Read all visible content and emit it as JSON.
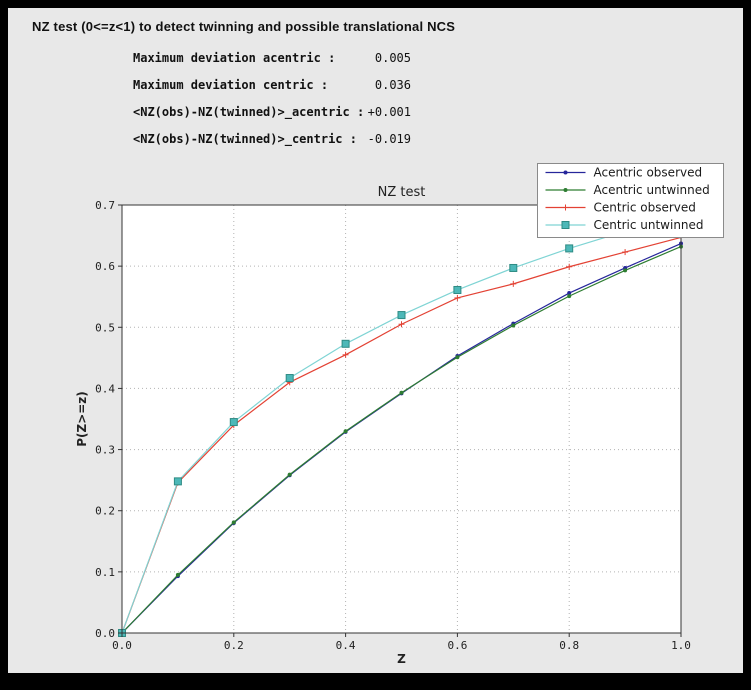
{
  "window": {
    "frame_color": "#000000",
    "panel_color": "#e8e8e8"
  },
  "header": {
    "title": "NZ test (0<=z<1) to detect twinning and possible translational NCS"
  },
  "stats": {
    "rows": [
      {
        "label": "Maximum deviation acentric :",
        "value": "0.005"
      },
      {
        "label": "Maximum deviation centric :",
        "value": "0.036"
      },
      {
        "label": "<NZ(obs)-NZ(twinned)>_acentric :",
        "value": "+0.001"
      },
      {
        "label": "<NZ(obs)-NZ(twinned)>_centric :",
        "value": "-0.019"
      }
    ]
  },
  "chart_data": {
    "type": "line",
    "title": "NZ test",
    "xlabel": "Z",
    "ylabel": "P(Z>=z)",
    "xlim": [
      0.0,
      1.0
    ],
    "ylim": [
      0.0,
      0.7
    ],
    "xticks": [
      0.0,
      0.2,
      0.4,
      0.6,
      0.8,
      1.0
    ],
    "yticks": [
      0.0,
      0.1,
      0.2,
      0.3,
      0.4,
      0.5,
      0.6,
      0.7
    ],
    "grid": true,
    "legend_position": "top-right",
    "colors": {
      "plot_bg": "#ffffff",
      "grid": "#b3b3b3",
      "axes": "#333333",
      "legend_bg": "#ffffff",
      "legend_border": "#8a8a8a"
    },
    "x": [
      0.0,
      0.1,
      0.2,
      0.3,
      0.4,
      0.5,
      0.6,
      0.7,
      0.8,
      0.9,
      1.0
    ],
    "series": [
      {
        "name": "Acentric observed",
        "color": "#26269b",
        "marker": "dot",
        "values": [
          0.0,
          0.093,
          0.18,
          0.258,
          0.329,
          0.392,
          0.453,
          0.506,
          0.556,
          0.597,
          0.637
        ]
      },
      {
        "name": "Acentric untwinned",
        "color": "#2e7d32",
        "marker": "dot",
        "values": [
          0.0,
          0.095,
          0.181,
          0.259,
          0.33,
          0.393,
          0.451,
          0.503,
          0.551,
          0.593,
          0.632
        ]
      },
      {
        "name": "Centric observed",
        "color": "#e34234",
        "marker": "plus",
        "values": [
          0.0,
          0.246,
          0.34,
          0.41,
          0.455,
          0.505,
          0.548,
          0.571,
          0.599,
          0.623,
          0.647
        ]
      },
      {
        "name": "Centric untwinned",
        "color": "#7fd4d4",
        "marker": "square",
        "marker_fill": "#4db8b8",
        "marker_edge": "#2e8b84",
        "values": [
          0.0,
          0.248,
          0.345,
          0.417,
          0.473,
          0.52,
          0.561,
          0.597,
          0.629,
          0.657,
          0.683
        ]
      }
    ]
  }
}
